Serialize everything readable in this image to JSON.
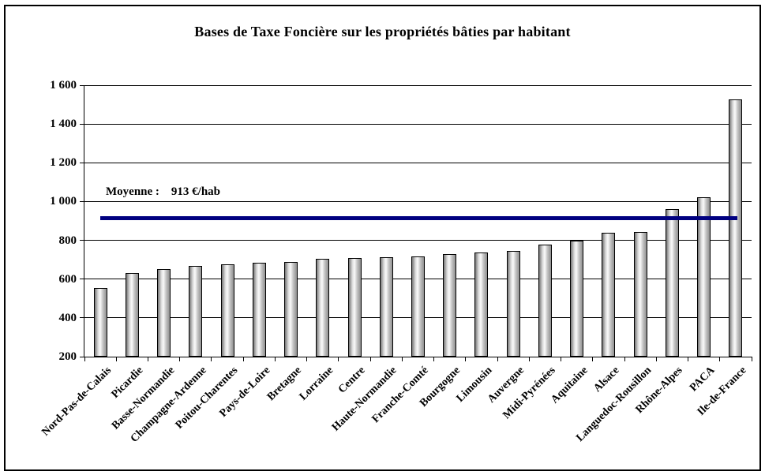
{
  "window": {
    "background": "#ffffff",
    "frame_border_color": "#000000"
  },
  "chart_data": {
    "type": "bar",
    "title": "Bases de Taxe Foncière sur les propriétés bâties par habitant",
    "categories": [
      "Nord-Pas-de-Calais",
      "Picardie",
      "Basse-Normandie",
      "Champagne-Ardenne",
      "Poitou-Charentes",
      "Pays-de-Loire",
      "Bretagne",
      "Lorraine",
      "Centre",
      "Haute-Normandie",
      "Franche-Comté",
      "Bourgogne",
      "Limousin",
      "Auvergne",
      "Midi-Pyrénées",
      "Aquitaine",
      "Alsace",
      "Languedoc-Rousillon",
      "Rhône-Alpes",
      "PACA",
      "Ile-de-France"
    ],
    "values": [
      556,
      630,
      653,
      670,
      677,
      683,
      690,
      704,
      709,
      711,
      718,
      729,
      738,
      744,
      778,
      799,
      838,
      843,
      960,
      1024,
      1527
    ],
    "unit": "€/hab",
    "ylim": [
      200,
      1600
    ],
    "ytick_step": 200,
    "ytick_labels": [
      "200",
      "400",
      "600",
      "800",
      "1 000",
      "1 200",
      "1 400",
      "1 600"
    ],
    "grid": true,
    "legend": "none",
    "bar_outline_color": "#000000",
    "bar_gradient": [
      "#757575",
      "#fbfbfb",
      "#8f8f8f"
    ],
    "average_line": {
      "value": 913,
      "label": "Moyenne :    913 €/hab",
      "color": "#000080"
    }
  }
}
